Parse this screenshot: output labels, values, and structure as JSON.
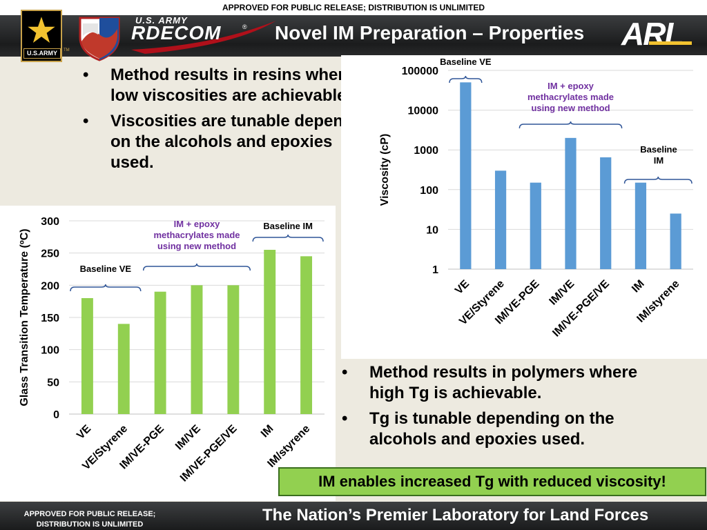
{
  "header": {
    "release_notice": "APPROVED FOR PUBLIC RELEASE; DISTRIBUTION IS UNLIMITED",
    "army_logo_text": "U.S.ARMY",
    "rdecom_top": "U.S. ARMY",
    "rdecom_main": "RDECOM",
    "rdecom_mark": "®",
    "army_mark": "TM",
    "title": "Novel IM Preparation – Properties",
    "arl_logo": "ARL"
  },
  "bullets_top": [
    "Method results in resins where low viscosities are achievable.",
    "Viscosities are tunable depending on the alcohols and epoxies used."
  ],
  "bullets_bottom": [
    "Method results in polymers where high Tg is achievable.",
    "Tg is tunable depending on the alcohols and epoxies used."
  ],
  "bullet_glyph": "•",
  "callout": "IM enables increased Tg with reduced viscosity!",
  "footer": {
    "release_notice_line1": "APPROVED FOR PUBLIC RELEASE;",
    "release_notice_line2": "DISTRIBUTION IS UNLIMITED",
    "slogan": "The Nation’s Premier Laboratory for Land Forces"
  },
  "colors": {
    "tg_bar": "#92d050",
    "visc_bar": "#5b9bd5",
    "annotation_purple": "#7030a0",
    "brace": "#2f5597"
  },
  "chart_data": [
    {
      "type": "bar",
      "title": "",
      "xlabel": "",
      "ylabel": "Glass Transition Temperature (ºC)",
      "categories": [
        "VE",
        "VE/Styrene",
        "IM/VE-PGE",
        "IM/VE",
        "IM/VE-PGE/VE",
        "IM",
        "IM/styrene"
      ],
      "values": [
        180,
        140,
        190,
        200,
        200,
        255,
        245
      ],
      "ylim": [
        0,
        300
      ],
      "yticks": [
        "0",
        "50",
        "100",
        "150",
        "200",
        "250",
        "300"
      ],
      "grid": true,
      "annotations": [
        {
          "text": "Baseline VE",
          "covers": [
            "VE",
            "VE/Styrene"
          ],
          "color": "#000000"
        },
        {
          "text": "IM + epoxy methacrylates made using new method",
          "covers": [
            "IM/VE-PGE",
            "IM/VE",
            "IM/VE-PGE/VE"
          ],
          "color": "#7030a0"
        },
        {
          "text": "Baseline IM",
          "covers": [
            "IM",
            "IM/styrene"
          ],
          "color": "#000000"
        }
      ]
    },
    {
      "type": "bar",
      "title": "",
      "xlabel": "",
      "ylabel": "Viscosity (cP)",
      "yscale": "log",
      "categories": [
        "VE",
        "VE/Styrene",
        "IM/VE-PGE",
        "IM/VE",
        "IM/VE-PGE/VE",
        "IM",
        "IM/styrene"
      ],
      "values": [
        50000,
        300,
        150,
        2000,
        650,
        150,
        25
      ],
      "ylim": [
        1,
        100000
      ],
      "yticks": [
        "1",
        "10",
        "100",
        "1000",
        "10000",
        "100000"
      ],
      "grid": true,
      "annotations": [
        {
          "text": "Baseline VE",
          "covers": [
            "VE"
          ],
          "color": "#000000"
        },
        {
          "text": "IM + epoxy methacrylates made using new method",
          "covers": [
            "IM/VE-PGE",
            "IM/VE",
            "IM/VE-PGE/VE"
          ],
          "color": "#7030a0"
        },
        {
          "text": "Baseline IM",
          "covers": [
            "IM",
            "IM/styrene"
          ],
          "color": "#000000"
        }
      ]
    }
  ]
}
